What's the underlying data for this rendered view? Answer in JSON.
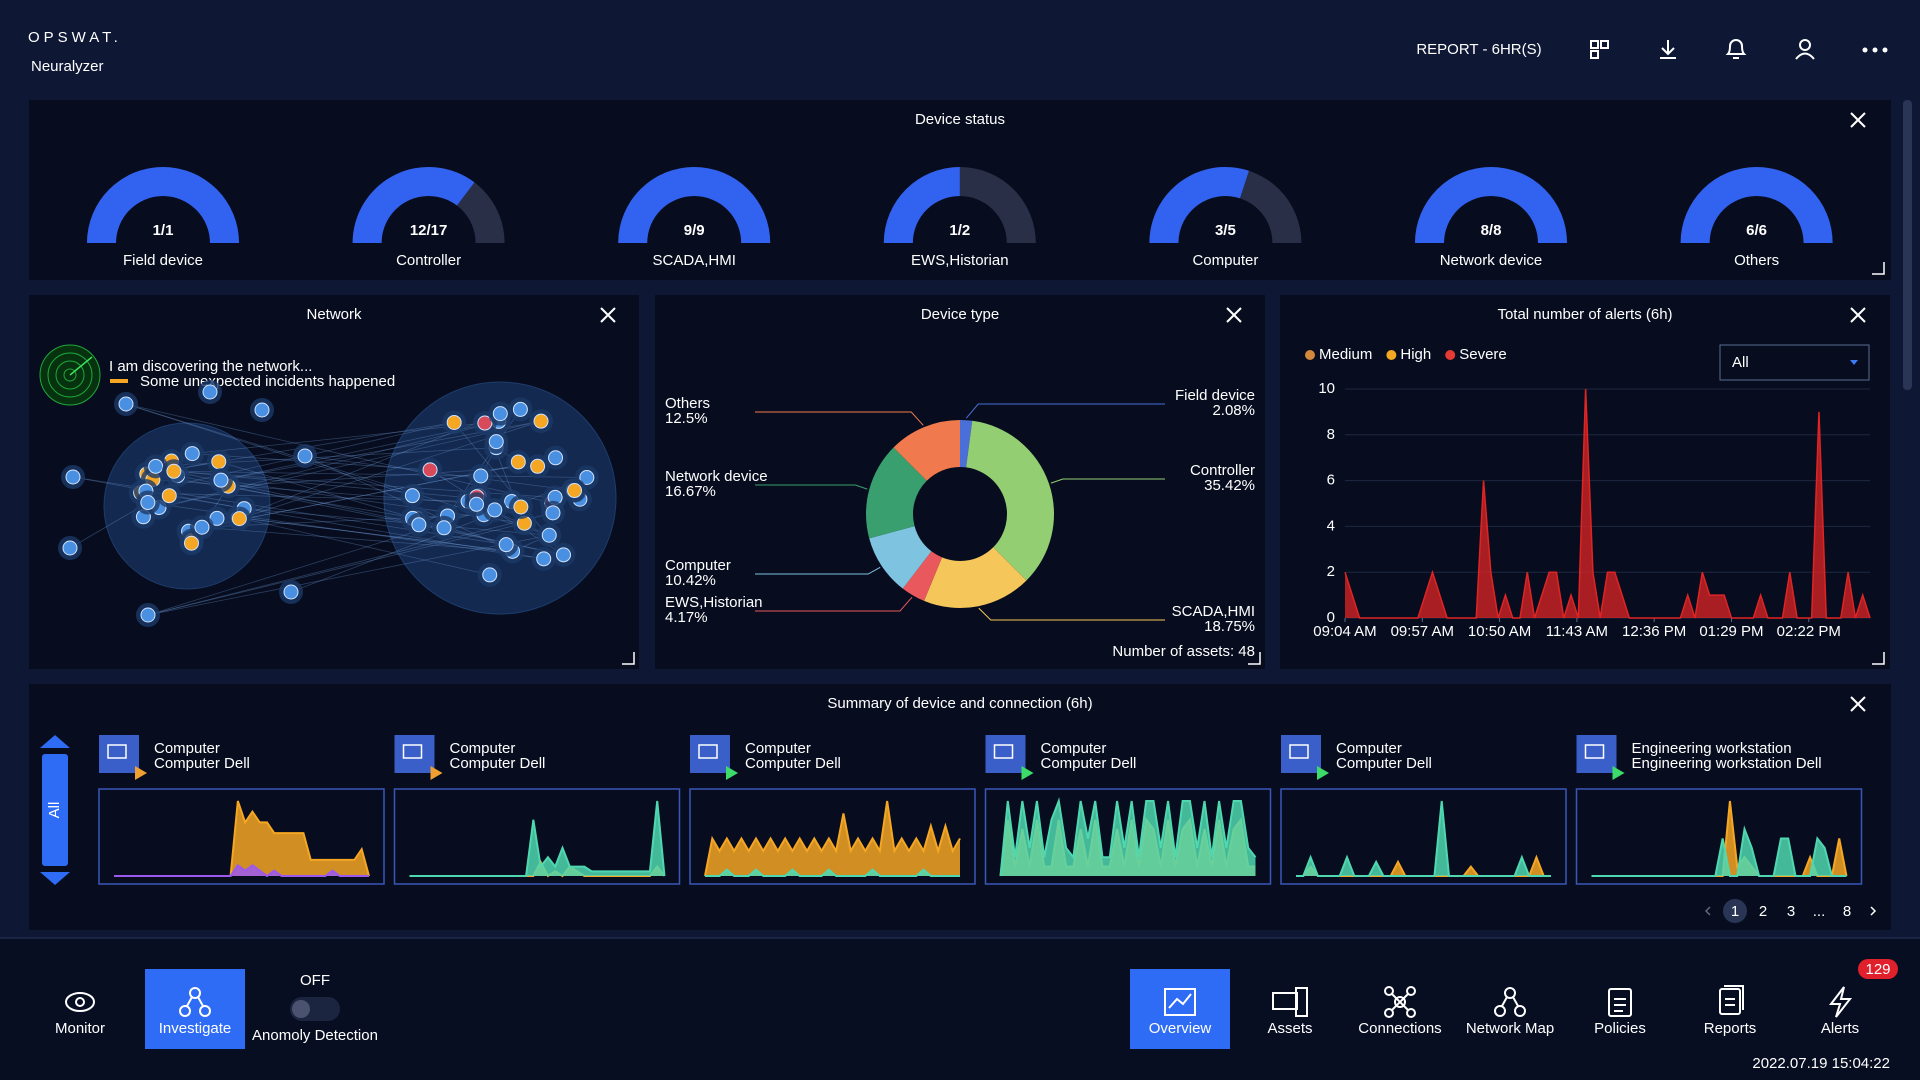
{
  "header": {
    "logo": "OPSWAT.",
    "product": "Neuralyzer",
    "report": "REPORT - 6HR(S)"
  },
  "device_status": {
    "title": "Device status",
    "gauges": [
      {
        "name": "Field device",
        "value": 1,
        "total": 1,
        "value_label": "1/1"
      },
      {
        "name": "Controller",
        "value": 12,
        "total": 17,
        "value_label": "12/17"
      },
      {
        "name": "SCADA,HMI",
        "value": 9,
        "total": 9,
        "value_label": "9/9"
      },
      {
        "name": "EWS,Historian",
        "value": 1,
        "total": 2,
        "value_label": "1/2"
      },
      {
        "name": "Computer",
        "value": 3,
        "total": 5,
        "value_label": "3/5"
      },
      {
        "name": "Network device",
        "value": 8,
        "total": 8,
        "value_label": "8/8"
      },
      {
        "name": "Others",
        "value": 6,
        "total": 6,
        "value_label": "6/6"
      }
    ]
  },
  "network": {
    "title": "Network",
    "status": "I am discovering the network...",
    "alert": "Some unexpected incidents happened"
  },
  "chart_data": [
    {
      "type": "pie",
      "donut": true,
      "title": "Device type",
      "categories": [
        "Field device",
        "Controller",
        "SCADA,HMI",
        "EWS,Historian",
        "Computer",
        "Network device",
        "Others"
      ],
      "values": [
        2.08,
        35.42,
        18.75,
        4.17,
        10.42,
        16.67,
        12.5
      ],
      "value_labels": [
        "2.08%",
        "35.42%",
        "18.75%",
        "4.17%",
        "10.42%",
        "16.67%",
        "12.5%"
      ],
      "colors": [
        "#4a6fd8",
        "#93cf72",
        "#f5c75a",
        "#e8585c",
        "#7ec3e0",
        "#3a9f6e",
        "#f07a4e"
      ],
      "footer": "Number of assets: 48"
    },
    {
      "type": "line",
      "title": "Total number of alerts (6h)",
      "legend": [
        {
          "name": "Medium",
          "color": "#d4883c"
        },
        {
          "name": "High",
          "color": "#f5a623"
        },
        {
          "name": "Severe",
          "color": "#e53935"
        }
      ],
      "filter": "All",
      "color": "#e02424",
      "x": [
        0,
        5,
        10,
        15,
        20,
        25,
        30,
        35,
        40,
        45,
        50,
        55,
        60,
        65,
        70,
        75,
        80,
        85,
        90,
        95,
        100,
        105,
        110,
        115,
        120,
        125,
        130,
        135,
        140,
        145,
        150,
        155,
        160,
        165,
        170,
        175,
        180,
        185,
        190,
        195,
        200,
        205,
        210,
        215,
        220,
        225,
        230,
        235,
        240,
        245,
        250,
        255,
        260,
        265,
        270,
        275,
        280,
        285,
        290,
        295,
        300,
        305,
        310,
        315,
        320,
        325,
        330,
        335,
        340,
        345,
        350,
        355,
        360
      ],
      "values": [
        2,
        1,
        0,
        0,
        0,
        0,
        0,
        0,
        0,
        0,
        0,
        1,
        2,
        1,
        0,
        0,
        0,
        0,
        0,
        6,
        2,
        0,
        1,
        0,
        0,
        2,
        0,
        1,
        2,
        2,
        0,
        1,
        0,
        10,
        2,
        0,
        2,
        2,
        1,
        0,
        0,
        0,
        0,
        0,
        0,
        0,
        0,
        1,
        0,
        2,
        1,
        1,
        1,
        0,
        0,
        0,
        0,
        1,
        0,
        0,
        0,
        2,
        0,
        0,
        0,
        9,
        0,
        0,
        0,
        2,
        0,
        1,
        0
      ],
      "xlim": [
        0,
        360
      ],
      "ylim": [
        0,
        10
      ],
      "yticks": [
        0,
        2,
        4,
        6,
        8,
        10
      ],
      "xticks": [
        {
          "value": 0,
          "label": "09:04 AM"
        },
        {
          "value": 53,
          "label": "09:57 AM"
        },
        {
          "value": 106,
          "label": "10:50 AM"
        },
        {
          "value": 159,
          "label": "11:43 AM"
        },
        {
          "value": 212,
          "label": "12:36 PM"
        },
        {
          "value": 265,
          "label": "01:29 PM"
        },
        {
          "value": 318,
          "label": "02:22 PM"
        }
      ],
      "grid": true
    }
  ],
  "summary": {
    "title": "Summary of device and connection (6h)",
    "tab": "All",
    "pages": [
      1,
      2,
      3,
      "...",
      8
    ],
    "cards": [
      {
        "type": "Computer",
        "name": "Computer Dell",
        "color": "#f0a030",
        "indicator_color": "#f0a030",
        "series": [
          {
            "color": "#f5a623",
            "values": [
              0,
              0,
              0,
              0,
              0,
              0,
              0,
              0,
              0,
              0,
              0,
              0,
              0,
              0,
              0,
              0,
              0,
              7,
              5,
              6,
              5,
              5,
              4,
              4,
              4,
              4,
              4,
              1.5,
              1.5,
              1.5,
              1.5,
              1.5,
              1.5,
              1.5,
              2.5,
              0
            ]
          },
          {
            "color": "#9b59f0",
            "values": [
              0,
              0,
              0,
              0,
              0,
              0,
              0,
              0,
              0,
              0,
              0,
              0,
              0,
              0,
              0,
              0,
              0,
              1,
              0.5,
              1,
              0.5,
              0,
              0.5,
              0,
              0,
              0,
              0,
              0,
              0,
              0,
              0.5,
              0,
              0,
              0,
              0,
              0
            ]
          }
        ]
      },
      {
        "type": "Computer",
        "name": "Computer Dell",
        "color": "#f0a030",
        "indicator_color": "#f0a030",
        "series": [
          {
            "color": "#f5a623",
            "values": [
              0,
              0,
              0,
              0,
              0,
              0,
              0,
              0,
              0,
              0,
              0,
              0,
              0,
              0,
              0,
              0,
              0,
              0,
              1.5,
              0,
              0.5,
              0,
              1,
              0.5,
              0,
              0,
              0,
              0,
              0,
              0,
              0,
              0,
              0,
              0,
              1,
              0
            ]
          },
          {
            "color": "#4fd8b0",
            "values": [
              0,
              0,
              0,
              0,
              0,
              0,
              0,
              0,
              0,
              0,
              0,
              0,
              0,
              0,
              0,
              0,
              0,
              6,
              1,
              2,
              1,
              3,
              1,
              1,
              1,
              0.5,
              0.5,
              0.5,
              0.5,
              0.5,
              0.5,
              0.5,
              0.5,
              0.5,
              8,
              0
            ]
          }
        ]
      },
      {
        "type": "Computer",
        "name": "Computer Dell",
        "color": "#f0a030",
        "indicator_color": "#3ddc6a",
        "series": [
          {
            "color": "#f5a623",
            "values": [
              0,
              3,
              2,
              3,
              2,
              3,
              2,
              3,
              2,
              3,
              2,
              3,
              2,
              3,
              2,
              3,
              2,
              3,
              2,
              5,
              2,
              3,
              2,
              3,
              2,
              6,
              2,
              3,
              2,
              3,
              2,
              4,
              2,
              4,
              2,
              3
            ]
          },
          {
            "color": "#4fd8b0",
            "values": [
              0,
              0,
              0,
              0.5,
              0,
              0,
              0,
              0.5,
              0,
              0,
              0,
              0,
              0.5,
              0,
              0,
              0,
              0,
              0.5,
              0,
              0,
              0,
              0,
              0,
              0.5,
              0,
              0,
              0,
              0,
              0,
              0,
              0.5,
              0,
              0,
              0,
              0,
              0
            ]
          }
        ]
      },
      {
        "type": "Computer",
        "name": "Computer Dell",
        "color": "#f0a030",
        "indicator_color": "#3ddc6a",
        "series": [
          {
            "color": "#f5a623",
            "values": [
              0,
              6,
              1,
              5,
              1,
              6,
              1,
              1,
              6,
              1,
              1,
              5,
              1,
              6,
              1,
              1,
              5,
              1,
              6,
              1,
              6,
              5,
              1,
              6,
              1,
              5,
              6,
              1,
              5,
              1,
              6,
              1,
              5,
              6,
              1,
              1
            ]
          },
          {
            "color": "#4fd8b0",
            "values": [
              0,
              8,
              2,
              8,
              3,
              8,
              2,
              6,
              8,
              3,
              2,
              8,
              4,
              8,
              2,
              2,
              8,
              3,
              8,
              2,
              8,
              8,
              3,
              8,
              2,
              8,
              8,
              3,
              8,
              2,
              8,
              3,
              8,
              8,
              3,
              2
            ]
          }
        ]
      },
      {
        "type": "Computer",
        "name": "Computer Dell",
        "color": "#f0a030",
        "indicator_color": "#3ddc6a",
        "series": [
          {
            "color": "#f5a623",
            "values": [
              0,
              0,
              1,
              0,
              0,
              0,
              0,
              0,
              0,
              0,
              0,
              0,
              0,
              0,
              1.5,
              0,
              0,
              0,
              0,
              0,
              0,
              0,
              0,
              0,
              1,
              0,
              0,
              0,
              0,
              0,
              0,
              0,
              0,
              2,
              0,
              0
            ]
          },
          {
            "color": "#4fd8b0",
            "values": [
              0,
              0,
              2,
              0,
              0,
              0,
              0,
              2,
              0,
              0,
              0,
              1.5,
              0,
              0,
              0,
              0,
              0,
              0,
              0,
              0,
              8,
              0,
              0,
              0,
              0,
              0,
              0,
              0,
              0,
              0,
              0,
              2,
              0,
              0,
              0,
              0
            ]
          }
        ]
      },
      {
        "type": "Engineering workstation",
        "name": "Engineering workstation Dell",
        "color": "#f0a030",
        "indicator_color": "#3ddc6a",
        "series": [
          {
            "color": "#f5a623",
            "values": [
              0,
              0,
              0,
              0,
              0,
              0,
              0,
              0,
              0,
              0,
              0,
              0,
              0,
              0,
              0,
              0,
              0,
              0,
              0,
              8,
              1,
              2,
              1,
              0,
              0,
              0,
              0,
              0,
              0,
              0,
              2,
              0,
              0,
              0,
              4,
              0
            ]
          },
          {
            "color": "#4fd8b0",
            "values": [
              0,
              0,
              0,
              0,
              0,
              0,
              0,
              0,
              0,
              0,
              0,
              0,
              0,
              0,
              0,
              0,
              0,
              0,
              4,
              0,
              0,
              5,
              3,
              0,
              0,
              0,
              4,
              4,
              0,
              0,
              0,
              4,
              3,
              0,
              0,
              0
            ]
          }
        ]
      }
    ]
  },
  "nav": {
    "left": [
      {
        "label": "Monitor",
        "active": false
      },
      {
        "label": "Investigate",
        "active": true
      }
    ],
    "toggle": {
      "state": "OFF",
      "label": "Anomoly Detection"
    },
    "right": [
      {
        "label": "Overview",
        "active": true
      },
      {
        "label": "Assets",
        "active": false
      },
      {
        "label": "Connections",
        "active": false
      },
      {
        "label": "Network Map",
        "active": false
      },
      {
        "label": "Policies",
        "active": false
      },
      {
        "label": "Reports",
        "active": false
      },
      {
        "label": "Alerts",
        "active": false
      }
    ],
    "alerts_badge": 129,
    "timestamp": "2022.07.19 15:04:22"
  }
}
